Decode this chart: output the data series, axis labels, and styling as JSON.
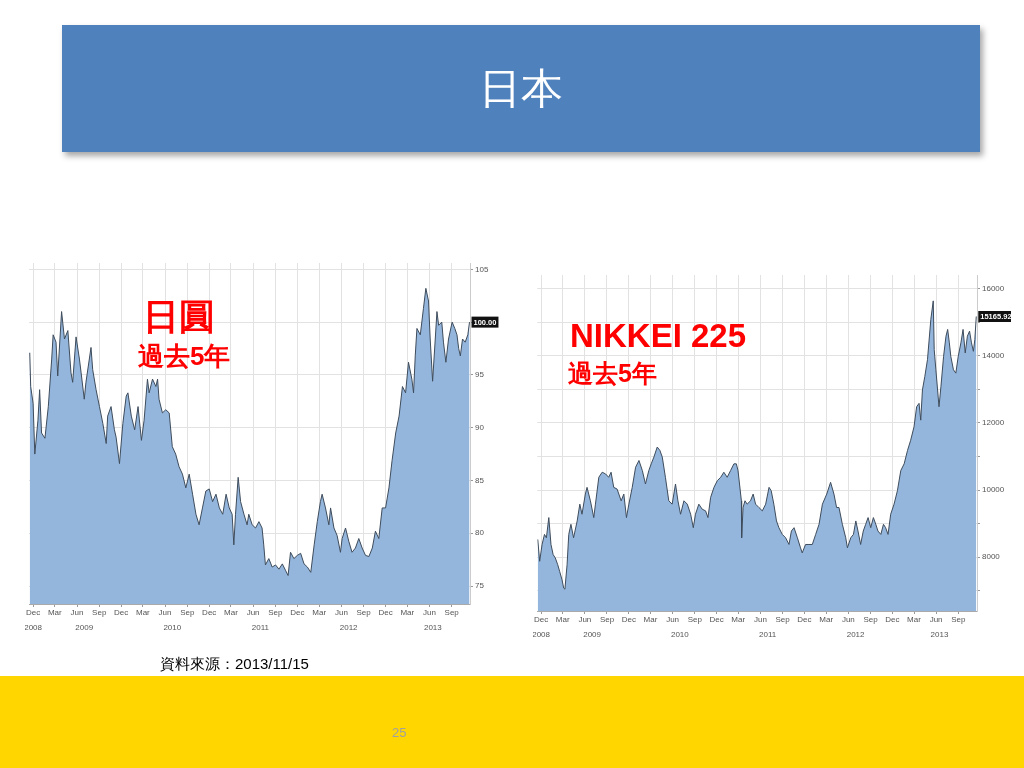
{
  "chart_data": [
    {
      "type": "other",
      "title": "日本"
    },
    {
      "type": "area",
      "title": "日圓",
      "subtitle": "過去5年",
      "color": "#94b6dc",
      "grid": true,
      "xlim": [
        "2008-11-14",
        "2013-11-16"
      ],
      "ylim": [
        73.3,
        105.6
      ],
      "yticks": [
        75,
        80,
        85,
        90,
        95,
        {
          "value": 100,
          "label": null
        },
        105
      ],
      "xticks": [
        {
          "value": "2008-12-01",
          "label": "Dec"
        },
        {
          "value": "2009-03-01",
          "label": "Mar"
        },
        {
          "value": "2009-06-01",
          "label": "Jun"
        },
        {
          "value": "2009-09-01",
          "label": "Sep"
        },
        {
          "value": "2009-12-01",
          "label": "Dec"
        },
        {
          "value": "2010-03-01",
          "label": "Mar"
        },
        {
          "value": "2010-06-01",
          "label": "Jun"
        },
        {
          "value": "2010-09-01",
          "label": "Sep"
        },
        {
          "value": "2010-12-01",
          "label": "Dec"
        },
        {
          "value": "2011-03-01",
          "label": "Mar"
        },
        {
          "value": "2011-06-01",
          "label": "Jun"
        },
        {
          "value": "2011-09-01",
          "label": "Sep"
        },
        {
          "value": "2011-12-01",
          "label": "Dec"
        },
        {
          "value": "2012-03-01",
          "label": "Mar"
        },
        {
          "value": "2012-06-01",
          "label": "Jun"
        },
        {
          "value": "2012-09-01",
          "label": "Sep"
        },
        {
          "value": "2012-12-01",
          "label": "Dec"
        },
        {
          "value": "2013-03-01",
          "label": "Mar"
        },
        {
          "value": "2013-06-01",
          "label": "Jun"
        },
        {
          "value": "2013-09-01",
          "label": "Sep"
        }
      ],
      "x2lim": [
        "2008-11-14",
        "2013-11-16"
      ],
      "x2ticks": [
        {
          "value": "2008-12-01",
          "label": "2008"
        },
        {
          "value": "2009-07-01",
          "label": "2009"
        },
        {
          "value": "2010-07-01",
          "label": "2010"
        },
        {
          "value": "2011-07-01",
          "label": "2011"
        },
        {
          "value": "2012-07-01",
          "label": "2012"
        },
        {
          "value": "2013-06-15",
          "label": "2013"
        }
      ],
      "x": [
        "2008-11-17",
        "2008-11-21",
        "2008-12-01",
        "2008-12-08",
        "2008-12-21",
        "2008-12-28",
        "2009-01-05",
        "2009-01-19",
        "2009-02-02",
        "2009-02-16",
        "2009-02-22",
        "2009-03-06",
        "2009-03-13",
        "2009-03-29",
        "2009-04-10",
        "2009-04-24",
        "2009-05-07",
        "2009-05-14",
        "2009-05-28",
        "2009-06-11",
        "2009-06-18",
        "2009-07-01",
        "2009-07-08",
        "2009-07-29",
        "2009-08-05",
        "2009-08-19",
        "2009-09-02",
        "2009-09-16",
        "2009-09-30",
        "2009-10-06",
        "2009-10-20",
        "2009-11-03",
        "2009-11-10",
        "2009-11-24",
        "2009-12-08",
        "2009-12-22",
        "2009-12-29",
        "2010-01-12",
        "2010-01-26",
        "2010-02-09",
        "2010-02-23",
        "2010-03-06",
        "2010-03-20",
        "2010-03-27",
        "2010-04-10",
        "2010-04-24",
        "2010-05-01",
        "2010-05-07",
        "2010-05-21",
        "2010-06-04",
        "2010-06-18",
        "2010-07-01",
        "2010-07-15",
        "2010-07-29",
        "2010-08-12",
        "2010-08-26",
        "2010-09-09",
        "2010-09-23",
        "2010-10-07",
        "2010-10-20",
        "2010-11-03",
        "2010-11-17",
        "2010-12-01",
        "2010-12-15",
        "2010-12-29",
        "2011-01-12",
        "2011-01-26",
        "2011-02-09",
        "2011-02-22",
        "2011-03-06",
        "2011-03-13",
        "2011-03-20",
        "2011-03-31",
        "2011-04-10",
        "2011-04-24",
        "2011-05-07",
        "2011-05-14",
        "2011-05-28",
        "2011-06-11",
        "2011-06-25",
        "2011-07-08",
        "2011-07-15",
        "2011-07-22",
        "2011-08-05",
        "2011-08-19",
        "2011-09-02",
        "2011-09-16",
        "2011-09-30",
        "2011-10-13",
        "2011-10-24",
        "2011-11-03",
        "2011-11-17",
        "2011-12-01",
        "2011-12-15",
        "2011-12-29",
        "2012-01-12",
        "2012-01-26",
        "2012-02-09",
        "2012-02-22",
        "2012-03-06",
        "2012-03-13",
        "2012-03-27",
        "2012-04-10",
        "2012-04-17",
        "2012-05-01",
        "2012-05-14",
        "2012-05-28",
        "2012-06-04",
        "2012-06-18",
        "2012-07-02",
        "2012-07-15",
        "2012-07-29",
        "2012-08-12",
        "2012-08-26",
        "2012-09-09",
        "2012-09-23",
        "2012-10-07",
        "2012-10-20",
        "2012-11-03",
        "2012-11-17",
        "2012-12-01",
        "2012-12-15",
        "2012-12-28",
        "2013-01-12",
        "2013-01-26",
        "2013-02-09",
        "2013-02-22",
        "2013-03-06",
        "2013-03-20",
        "2013-03-27",
        "2013-04-03",
        "2013-04-10",
        "2013-04-24",
        "2013-05-07",
        "2013-05-17",
        "2013-05-28",
        "2013-06-04",
        "2013-06-14",
        "2013-06-25",
        "2013-07-02",
        "2013-07-09",
        "2013-07-22",
        "2013-07-29",
        "2013-08-08",
        "2013-08-19",
        "2013-09-03",
        "2013-09-14",
        "2013-09-23",
        "2013-09-30",
        "2013-10-07",
        "2013-10-16",
        "2013-10-27",
        "2013-11-07",
        "2013-11-14"
      ],
      "values": [
        97.1,
        93.9,
        92.3,
        87.5,
        90.7,
        93.6,
        89.5,
        89.0,
        92.0,
        96.5,
        98.8,
        98.1,
        94.9,
        101.0,
        98.4,
        99.2,
        95.2,
        94.3,
        98.6,
        96.5,
        95.2,
        92.7,
        94.3,
        97.6,
        95.5,
        93.6,
        92.0,
        90.4,
        88.5,
        91.1,
        92.0,
        89.8,
        89.1,
        86.6,
        90.4,
        93.0,
        93.3,
        91.1,
        89.8,
        92.0,
        88.8,
        90.7,
        94.6,
        93.3,
        94.6,
        93.9,
        94.6,
        92.7,
        91.4,
        91.7,
        91.4,
        88.2,
        87.5,
        86.3,
        85.6,
        84.3,
        85.6,
        83.7,
        81.8,
        80.8,
        82.4,
        84.0,
        84.2,
        83.0,
        83.7,
        82.4,
        81.8,
        83.7,
        82.4,
        81.8,
        78.9,
        81.8,
        85.3,
        83.0,
        81.8,
        80.8,
        81.8,
        80.8,
        80.5,
        81.1,
        80.5,
        78.9,
        77.0,
        77.6,
        76.8,
        77.0,
        76.6,
        77.1,
        76.5,
        76.0,
        78.2,
        77.6,
        77.9,
        78.1,
        77.1,
        76.8,
        76.3,
        78.9,
        81.1,
        83.0,
        83.7,
        82.4,
        80.8,
        82.4,
        80.5,
        79.8,
        78.2,
        79.5,
        80.5,
        79.2,
        78.2,
        78.6,
        79.5,
        78.6,
        77.9,
        77.8,
        78.6,
        80.2,
        79.5,
        82.4,
        82.4,
        84.3,
        86.9,
        89.5,
        91.1,
        93.9,
        93.3,
        96.2,
        94.6,
        93.3,
        96.8,
        99.4,
        98.8,
        101.3,
        103.2,
        102.0,
        98.4,
        94.4,
        98.4,
        101.0,
        99.7,
        100.0,
        98.1,
        96.2,
        98.4,
        100.0,
        99.4,
        98.8,
        97.5,
        96.8,
        98.4,
        98.1,
        98.8,
        100.0
      ],
      "annotations": [
        {
          "text": "100.00",
          "x": "2013-11-14",
          "y": 100.0
        }
      ]
    },
    {
      "type": "area",
      "title": "NIKKEI 225",
      "subtitle": "過去5年",
      "color": "#94b6dc",
      "grid": true,
      "xlim": [
        "2008-11-15",
        "2013-11-18"
      ],
      "ylim": [
        6400,
        16400
      ],
      "yticks": [
        {
          "value": 7000,
          "label": null
        },
        8000,
        {
          "value": 9000,
          "label": null
        },
        10000,
        {
          "value": 11000,
          "label": null
        },
        12000,
        {
          "value": 13000,
          "label": null
        },
        14000,
        {
          "value": 15000,
          "label": null
        },
        16000
      ],
      "xticks": [
        {
          "value": "2008-12-01",
          "label": "Dec"
        },
        {
          "value": "2009-03-01",
          "label": "Mar"
        },
        {
          "value": "2009-06-01",
          "label": "Jun"
        },
        {
          "value": "2009-09-01",
          "label": "Sep"
        },
        {
          "value": "2009-12-01",
          "label": "Dec"
        },
        {
          "value": "2010-03-01",
          "label": "Mar"
        },
        {
          "value": "2010-06-01",
          "label": "Jun"
        },
        {
          "value": "2010-09-01",
          "label": "Sep"
        },
        {
          "value": "2010-12-01",
          "label": "Dec"
        },
        {
          "value": "2011-03-01",
          "label": "Mar"
        },
        {
          "value": "2011-06-01",
          "label": "Jun"
        },
        {
          "value": "2011-09-01",
          "label": "Sep"
        },
        {
          "value": "2011-12-01",
          "label": "Dec"
        },
        {
          "value": "2012-03-01",
          "label": "Mar"
        },
        {
          "value": "2012-06-01",
          "label": "Jun"
        },
        {
          "value": "2012-09-01",
          "label": "Sep"
        },
        {
          "value": "2012-12-01",
          "label": "Dec"
        },
        {
          "value": "2013-03-01",
          "label": "Mar"
        },
        {
          "value": "2013-06-01",
          "label": "Jun"
        },
        {
          "value": "2013-09-01",
          "label": "Sep"
        }
      ],
      "x2lim": [
        "2008-11-15",
        "2013-11-18"
      ],
      "x2ticks": [
        {
          "value": "2008-12-01",
          "label": "2008"
        },
        {
          "value": "2009-07-01",
          "label": "2009"
        },
        {
          "value": "2010-07-01",
          "label": "2010"
        },
        {
          "value": "2011-07-01",
          "label": "2011"
        },
        {
          "value": "2012-07-01",
          "label": "2012"
        },
        {
          "value": "2013-06-15",
          "label": "2013"
        }
      ],
      "x": [
        "2008-11-17",
        "2008-11-25",
        "2008-12-05",
        "2008-12-15",
        "2008-12-23",
        "2009-01-02",
        "2009-01-11",
        "2009-01-20",
        "2009-01-29",
        "2009-02-08",
        "2009-02-16",
        "2009-02-26",
        "2009-03-05",
        "2009-03-10",
        "2009-03-19",
        "2009-03-26",
        "2009-04-04",
        "2009-04-15",
        "2009-04-30",
        "2009-05-11",
        "2009-05-20",
        "2009-06-03",
        "2009-06-10",
        "2009-06-24",
        "2009-07-08",
        "2009-07-15",
        "2009-07-29",
        "2009-08-12",
        "2009-08-26",
        "2009-09-08",
        "2009-09-18",
        "2009-09-29",
        "2009-10-13",
        "2009-10-30",
        "2009-11-10",
        "2009-11-21",
        "2009-12-01",
        "2009-12-15",
        "2009-12-29",
        "2010-01-12",
        "2010-01-26",
        "2010-02-08",
        "2010-02-22",
        "2010-03-04",
        "2010-03-15",
        "2010-03-29",
        "2010-04-09",
        "2010-04-19",
        "2010-05-02",
        "2010-05-16",
        "2010-05-30",
        "2010-06-13",
        "2010-06-23",
        "2010-07-04",
        "2010-07-18",
        "2010-08-01",
        "2010-08-15",
        "2010-08-26",
        "2010-09-04",
        "2010-09-18",
        "2010-10-02",
        "2010-10-16",
        "2010-10-26",
        "2010-11-06",
        "2010-11-20",
        "2010-12-04",
        "2010-12-18",
        "2010-12-31",
        "2011-01-14",
        "2011-01-28",
        "2011-02-11",
        "2011-02-21",
        "2011-02-28",
        "2011-03-14",
        "2011-03-15",
        "2011-03-21",
        "2011-03-29",
        "2011-04-07",
        "2011-04-21",
        "2011-05-02",
        "2011-05-12",
        "2011-05-26",
        "2011-06-09",
        "2011-06-23",
        "2011-07-07",
        "2011-07-16",
        "2011-07-27",
        "2011-08-07",
        "2011-08-17",
        "2011-08-31",
        "2011-09-14",
        "2011-09-28",
        "2011-10-08",
        "2011-10-19",
        "2011-11-02",
        "2011-11-15",
        "2011-11-22",
        "2011-12-06",
        "2011-12-20",
        "2012-01-03",
        "2012-01-17",
        "2012-01-31",
        "2012-02-14",
        "2012-03-03",
        "2012-03-19",
        "2012-04-02",
        "2012-04-13",
        "2012-04-23",
        "2012-05-07",
        "2012-05-21",
        "2012-05-28",
        "2012-06-11",
        "2012-06-22",
        "2012-07-02",
        "2012-07-11",
        "2012-07-22",
        "2012-08-02",
        "2012-08-12",
        "2012-08-22",
        "2012-09-02",
        "2012-09-13",
        "2012-09-23",
        "2012-10-02",
        "2012-10-14",
        "2012-10-25",
        "2012-11-03",
        "2012-11-13",
        "2012-11-24",
        "2012-12-08",
        "2012-12-22",
        "2013-01-05",
        "2013-01-19",
        "2013-02-02",
        "2013-02-15",
        "2013-03-01",
        "2013-03-12",
        "2013-03-22",
        "2013-03-29",
        "2013-04-05",
        "2013-04-15",
        "2013-04-26",
        "2013-05-10",
        "2013-05-20",
        "2013-05-24",
        "2013-05-31",
        "2013-06-13",
        "2013-06-21",
        "2013-07-02",
        "2013-07-12",
        "2013-07-19",
        "2013-07-26",
        "2013-08-01",
        "2013-08-12",
        "2013-08-22",
        "2013-09-01",
        "2013-09-12",
        "2013-09-21",
        "2013-09-30",
        "2013-10-09",
        "2013-10-18",
        "2013-10-26",
        "2013-11-03",
        "2013-11-09",
        "2013-11-15"
      ],
      "values": [
        8530,
        7880,
        8380,
        8680,
        8580,
        9180,
        8380,
        8080,
        7980,
        7780,
        7580,
        7330,
        7080,
        7050,
        7780,
        8680,
        8980,
        8580,
        9080,
        9580,
        9280,
        9880,
        10080,
        9680,
        9180,
        9580,
        10380,
        10530,
        10480,
        10380,
        10530,
        10080,
        10030,
        9680,
        9880,
        9180,
        9580,
        10080,
        10680,
        10880,
        10580,
        10180,
        10580,
        10780,
        10980,
        11280,
        11180,
        10980,
        10380,
        9680,
        9580,
        10180,
        9680,
        9280,
        9680,
        9580,
        9280,
        8880,
        9280,
        9580,
        9430,
        9380,
        9180,
        9780,
        10080,
        10280,
        10380,
        10530,
        10380,
        10580,
        10780,
        10780,
        10580,
        9680,
        8580,
        9480,
        9680,
        9580,
        9680,
        9880,
        9580,
        9480,
        9380,
        9580,
        10080,
        9980,
        9580,
        9080,
        8880,
        8680,
        8580,
        8380,
        8780,
        8880,
        8580,
        8280,
        8130,
        8380,
        8380,
        8380,
        8680,
        8980,
        9580,
        9880,
        10230,
        9880,
        9480,
        9480,
        8980,
        8580,
        8280,
        8580,
        8680,
        9080,
        8780,
        8380,
        8780,
        8980,
        9180,
        8880,
        9180,
        8980,
        8780,
        8680,
        8980,
        8880,
        8680,
        9280,
        9580,
        9980,
        10580,
        10780,
        11180,
        11480,
        11880,
        12480,
        12580,
        12080,
        12980,
        13380,
        13880,
        15080,
        15630,
        14180,
        13580,
        12480,
        13080,
        13980,
        14580,
        14780,
        14380,
        13980,
        13580,
        13480,
        13980,
        14380,
        14780,
        14080,
        14580,
        14730,
        14380,
        14130,
        14480,
        15165.92
      ],
      "annotations": [
        {
          "text": "15165.92",
          "x": "2013-11-15",
          "y": 15165.92
        }
      ]
    },
    {
      "type": "other",
      "annotations": [
        "資料來源：2013/11/15",
        "25"
      ]
    }
  ]
}
